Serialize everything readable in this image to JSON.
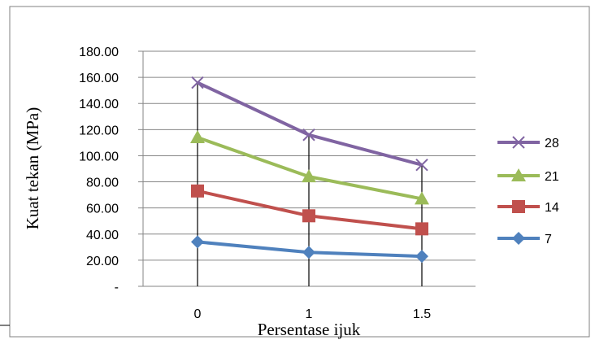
{
  "chart_data": {
    "type": "line",
    "xlabel": "Persentase ijuk",
    "ylabel": "Kuat tekan (MPa)",
    "categories": [
      "0",
      "1",
      "1.5"
    ],
    "ylim": [
      0,
      180
    ],
    "yticks": [
      0,
      20,
      40,
      60,
      80,
      100,
      120,
      140,
      160,
      180
    ],
    "ytick_labels": [
      "-",
      "20.00",
      "40.00",
      "60.00",
      "80.00",
      "100.00",
      "120.00",
      "140.00",
      "160.00",
      "180.00"
    ],
    "grid": "horizontal",
    "legend": "right",
    "series": [
      {
        "name": "28",
        "values": [
          156,
          116,
          93
        ],
        "color": "#8064a2",
        "marker": "x"
      },
      {
        "name": "21",
        "values": [
          114,
          84,
          67
        ],
        "color": "#9bbb59",
        "marker": "triangle"
      },
      {
        "name": "14",
        "values": [
          73,
          54,
          44
        ],
        "color": "#c0504d",
        "marker": "square"
      },
      {
        "name": "7",
        "values": [
          34,
          26,
          23
        ],
        "color": "#4f81bd",
        "marker": "diamond"
      }
    ]
  }
}
